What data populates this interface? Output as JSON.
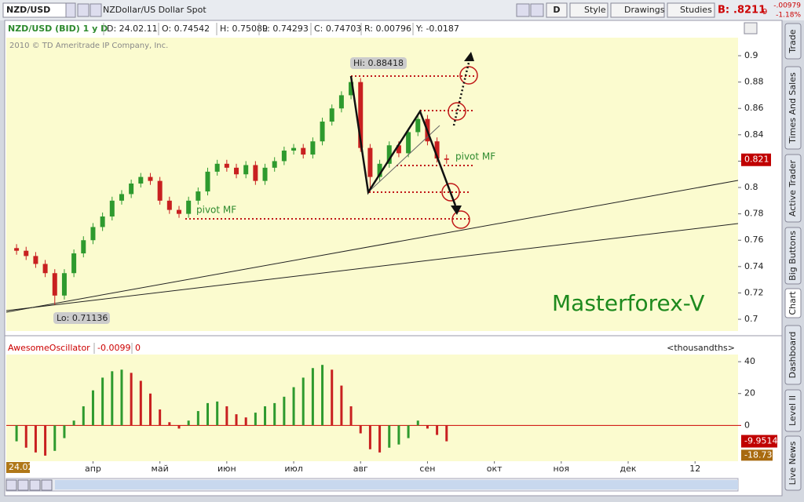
{
  "toolbar": {
    "symbol": "NZD/USD",
    "description": "NZDollar/US Dollar Spot",
    "buttons": [
      "D",
      "Style",
      "Drawings",
      "Studies"
    ],
    "bid_label": "B:",
    "bid": ".8211",
    "bid_small": "9",
    "change": "-.00979",
    "change_pct": "-1.18%"
  },
  "info_bar": [
    "NZD/USD (BID) 1 y D",
    "D: 24.02.11",
    "O: 0.74542",
    "H: 0.75089",
    "L: 0.74293",
    "C: 0.74703",
    "R: 0.00796",
    "Y: -0.0187"
  ],
  "copyright": "2010 © TD Ameritrade IP Company, Inc.",
  "cursor_date": "24.02",
  "side_tabs": [
    "Trade",
    "Times And Sales",
    "Active Trader",
    "Big Buttons",
    "Chart",
    "Dashboard",
    "Level II",
    "Live News"
  ],
  "chart_data": [
    {
      "type": "candlestick",
      "categories": [
        null,
        null,
        null,
        null,
        null,
        null,
        null,
        null,
        "апр",
        null,
        null,
        null,
        null,
        null,
        null,
        "май",
        null,
        null,
        null,
        null,
        null,
        null,
        "июн",
        null,
        null,
        null,
        null,
        null,
        null,
        "июл",
        null,
        null,
        null,
        null,
        null,
        null,
        "авг",
        null,
        null,
        null,
        null,
        null,
        null,
        "сен",
        null,
        null,
        null,
        null,
        null,
        null,
        "окт",
        null,
        null,
        null,
        null,
        null,
        null,
        "ноя",
        null,
        null,
        null,
        null,
        null,
        null,
        "дек",
        null,
        null,
        null,
        null,
        null,
        null,
        "12",
        null,
        null,
        null,
        null
      ],
      "open": [
        0.754,
        0.752,
        0.748,
        0.742,
        0.735,
        0.718,
        0.735,
        0.75,
        0.76,
        0.77,
        0.778,
        0.79,
        0.795,
        0.803,
        0.808,
        0.805,
        0.79,
        0.783,
        0.78,
        0.79,
        0.797,
        0.812,
        0.818,
        0.815,
        0.81,
        0.817,
        0.805,
        0.815,
        0.82,
        0.828,
        0.83,
        0.825,
        0.835,
        0.85,
        0.86,
        0.87,
        0.88,
        0.83,
        0.808,
        0.818,
        0.832,
        0.826,
        0.842,
        0.852,
        0.835,
        0.822,
        null,
        null,
        null,
        null,
        null,
        null,
        null,
        null,
        null,
        null,
        null,
        null,
        null,
        null,
        null,
        null,
        null,
        null,
        null,
        null,
        null,
        null,
        null,
        null,
        null,
        null,
        null,
        null,
        null,
        null
      ],
      "high": [
        0.757,
        0.755,
        0.751,
        0.745,
        0.738,
        0.738,
        0.753,
        0.763,
        0.773,
        0.781,
        0.793,
        0.798,
        0.806,
        0.811,
        0.811,
        0.808,
        0.793,
        0.786,
        0.793,
        0.8,
        0.815,
        0.821,
        0.821,
        0.818,
        0.82,
        0.82,
        0.818,
        0.823,
        0.831,
        0.833,
        0.833,
        0.838,
        0.853,
        0.863,
        0.873,
        0.884,
        0.883,
        0.833,
        0.821,
        0.835,
        0.835,
        0.845,
        0.856,
        0.855,
        0.838,
        0.825,
        null,
        null,
        null,
        null,
        null,
        null,
        null,
        null,
        null,
        null,
        null,
        null,
        null,
        null,
        null,
        null,
        null,
        null,
        null,
        null,
        null,
        null,
        null,
        null,
        null,
        null,
        null,
        null,
        null,
        null
      ],
      "low": [
        0.749,
        0.745,
        0.739,
        0.732,
        0.711,
        0.715,
        0.732,
        0.747,
        0.757,
        0.767,
        0.775,
        0.787,
        0.792,
        0.8,
        0.802,
        0.787,
        0.78,
        0.777,
        0.777,
        0.787,
        0.794,
        0.809,
        0.812,
        0.807,
        0.807,
        0.802,
        0.802,
        0.812,
        0.817,
        0.825,
        0.822,
        0.822,
        0.832,
        0.847,
        0.857,
        0.867,
        0.827,
        0.797,
        0.805,
        0.815,
        0.823,
        0.823,
        0.839,
        0.832,
        0.819,
        0.818,
        null,
        null,
        null,
        null,
        null,
        null,
        null,
        null,
        null,
        null,
        null,
        null,
        null,
        null,
        null,
        null,
        null,
        null,
        null,
        null,
        null,
        null,
        null,
        null,
        null,
        null,
        null,
        null,
        null,
        null
      ],
      "close": [
        0.752,
        0.748,
        0.742,
        0.735,
        0.718,
        0.735,
        0.75,
        0.76,
        0.77,
        0.778,
        0.79,
        0.795,
        0.803,
        0.808,
        0.805,
        0.79,
        0.783,
        0.78,
        0.79,
        0.797,
        0.812,
        0.818,
        0.815,
        0.81,
        0.817,
        0.805,
        0.815,
        0.82,
        0.828,
        0.83,
        0.825,
        0.835,
        0.85,
        0.86,
        0.87,
        0.88,
        0.83,
        0.808,
        0.818,
        0.832,
        0.826,
        0.842,
        0.852,
        0.835,
        0.822,
        0.821,
        null,
        null,
        null,
        null,
        null,
        null,
        null,
        null,
        null,
        null,
        null,
        null,
        null,
        null,
        null,
        null,
        null,
        null,
        null,
        null,
        null,
        null,
        null,
        null,
        null,
        null,
        null,
        null,
        null,
        null
      ],
      "up_color": "#2e9a2e",
      "down_color": "#c82020",
      "ylim": [
        0.6911,
        0.9137
      ],
      "yticks": [
        0.7,
        0.72,
        0.74,
        0.76,
        0.78,
        0.8,
        0.82,
        0.84,
        0.86,
        0.88,
        0.9
      ],
      "last_price": 0.821,
      "annotations": [
        "Hi: 0.88418",
        "Lo: 0.71136",
        "pivot MF",
        "pivot MF",
        "Masterforex-V"
      ]
    },
    {
      "type": "oscillator",
      "title": "AwesomeOscillator",
      "params": [
        "-0.0099",
        "0"
      ],
      "unit_label": "<thousandths>",
      "values": [
        -10,
        -14,
        -17,
        -19,
        -16,
        -8,
        3,
        12,
        22,
        30,
        34,
        35,
        33,
        28,
        20,
        10,
        2,
        -2,
        3,
        9,
        14,
        15,
        12,
        7,
        5,
        8,
        12,
        14,
        18,
        24,
        30,
        36,
        38,
        35,
        25,
        12,
        -5,
        -15,
        -17,
        -14,
        -12,
        -8,
        3,
        -2,
        -6,
        -10,
        null,
        null,
        null,
        null,
        null,
        null,
        null,
        null,
        null,
        null,
        null,
        null,
        null,
        null,
        null,
        null,
        null,
        null,
        null,
        null,
        null,
        null,
        null,
        null,
        null,
        null,
        null,
        null,
        null,
        null
      ],
      "up_color": "#2e9a2e",
      "down_color": "#c82020",
      "ylim": [
        -22.5,
        44.5
      ],
      "yticks": [
        0,
        20,
        40
      ],
      "last_value": -9.9514,
      "cursor_value": -18.73
    }
  ]
}
